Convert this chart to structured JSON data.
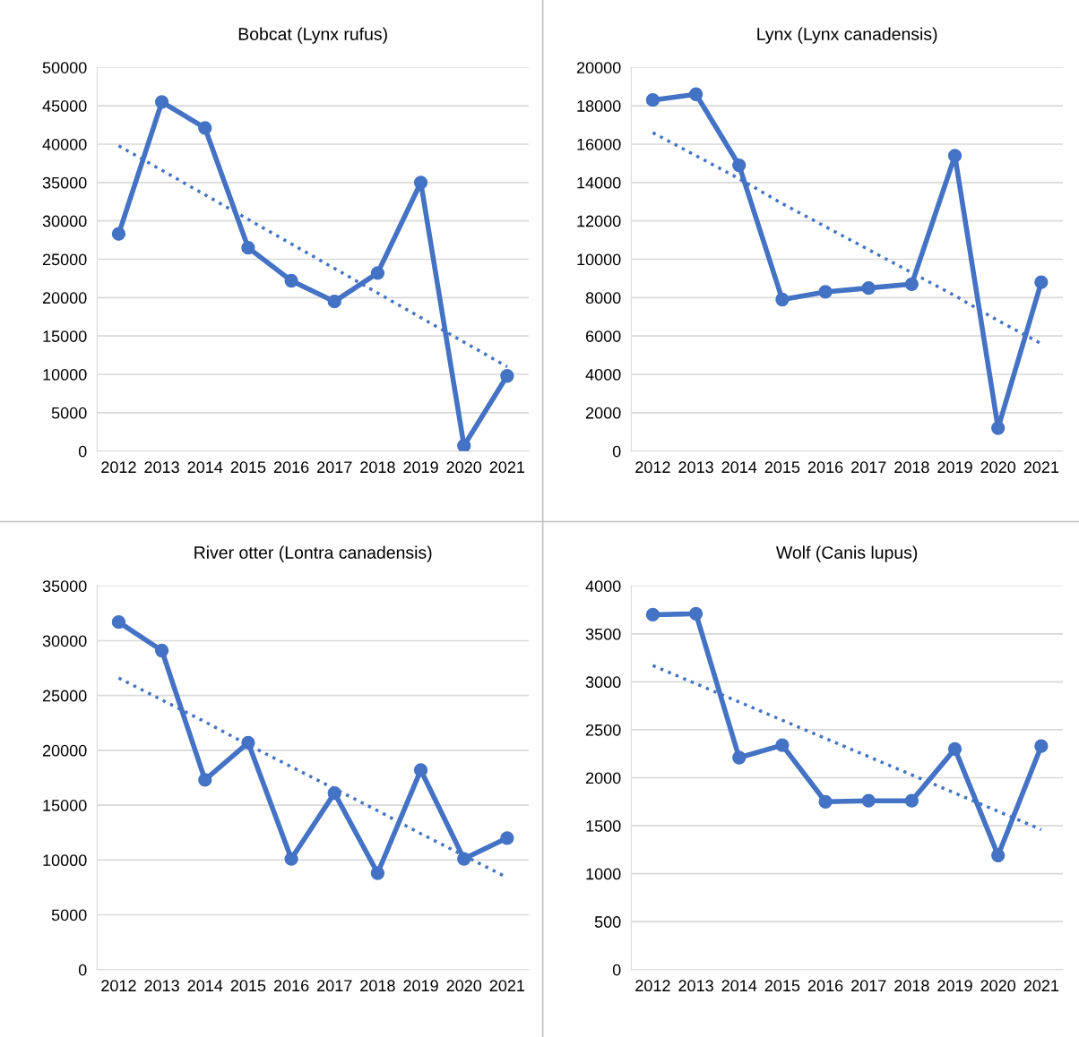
{
  "chart_data": [
    {
      "type": "line",
      "title": "Bobcat (Lynx rufus)",
      "x": [
        2012,
        2013,
        2014,
        2015,
        2016,
        2017,
        2018,
        2019,
        2020,
        2021
      ],
      "xlim": [
        2011.5,
        2021.5
      ],
      "xticks": [
        2012,
        2013,
        2014,
        2015,
        2016,
        2017,
        2018,
        2019,
        2020,
        2021
      ],
      "ylim": [
        0,
        50000
      ],
      "yticks": [
        0,
        5000,
        10000,
        15000,
        20000,
        25000,
        30000,
        35000,
        40000,
        45000,
        50000
      ],
      "grid": "y",
      "legend": false,
      "series": [
        {
          "color": "#4472c4",
          "marker": "circle",
          "line_style": "solid",
          "values": [
            28300,
            45500,
            42100,
            26500,
            22200,
            19500,
            23200,
            35000,
            700,
            9800
          ]
        },
        {
          "color": "#4472c4",
          "marker": "none",
          "line_style": "dotted",
          "values": [
            39800,
            36600,
            33400,
            30200,
            27000,
            23800,
            20600,
            17400,
            14200,
            11000
          ]
        }
      ]
    },
    {
      "type": "line",
      "title": "Lynx (Lynx canadensis)",
      "x": [
        2012,
        2013,
        2014,
        2015,
        2016,
        2017,
        2018,
        2019,
        2020,
        2021
      ],
      "xlim": [
        2011.5,
        2021.5
      ],
      "xticks": [
        2012,
        2013,
        2014,
        2015,
        2016,
        2017,
        2018,
        2019,
        2020,
        2021
      ],
      "ylim": [
        0,
        20000
      ],
      "yticks": [
        0,
        2000,
        4000,
        6000,
        8000,
        10000,
        12000,
        14000,
        16000,
        18000,
        20000
      ],
      "grid": "y",
      "legend": false,
      "series": [
        {
          "color": "#4472c4",
          "marker": "circle",
          "line_style": "solid",
          "values": [
            18300,
            18600,
            14900,
            7900,
            8300,
            8500,
            8700,
            15400,
            1200,
            8800
          ]
        },
        {
          "color": "#4472c4",
          "marker": "none",
          "line_style": "dotted",
          "values": [
            16600,
            15400,
            14200,
            12900,
            11700,
            10500,
            9300,
            8100,
            6800,
            5600
          ]
        }
      ]
    },
    {
      "type": "line",
      "title": "River otter (Lontra canadensis)",
      "x": [
        2012,
        2013,
        2014,
        2015,
        2016,
        2017,
        2018,
        2019,
        2020,
        2021
      ],
      "xlim": [
        2011.5,
        2021.5
      ],
      "xticks": [
        2012,
        2013,
        2014,
        2015,
        2016,
        2017,
        2018,
        2019,
        2020,
        2021
      ],
      "ylim": [
        0,
        35000
      ],
      "yticks": [
        0,
        5000,
        10000,
        15000,
        20000,
        25000,
        30000,
        35000
      ],
      "grid": "y",
      "legend": false,
      "series": [
        {
          "color": "#4472c4",
          "marker": "circle",
          "line_style": "solid",
          "values": [
            31700,
            29100,
            17300,
            20700,
            10100,
            16100,
            8800,
            18200,
            10100,
            12000
          ]
        },
        {
          "color": "#4472c4",
          "marker": "none",
          "line_style": "dotted",
          "values": [
            26600,
            24600,
            22600,
            20500,
            18500,
            16500,
            14500,
            12400,
            10400,
            8400
          ]
        }
      ]
    },
    {
      "type": "line",
      "title": "Wolf (Canis lupus)",
      "x": [
        2012,
        2013,
        2014,
        2015,
        2016,
        2017,
        2018,
        2019,
        2020,
        2021
      ],
      "xlim": [
        2011.5,
        2021.5
      ],
      "xticks": [
        2012,
        2013,
        2014,
        2015,
        2016,
        2017,
        2018,
        2019,
        2020,
        2021
      ],
      "ylim": [
        0,
        4000
      ],
      "yticks": [
        0,
        500,
        1000,
        1500,
        2000,
        2500,
        3000,
        3500,
        4000
      ],
      "grid": "y",
      "legend": false,
      "series": [
        {
          "color": "#4472c4",
          "marker": "circle",
          "line_style": "solid",
          "values": [
            3700,
            3710,
            2210,
            2340,
            1750,
            1760,
            1760,
            2300,
            1190,
            2330
          ]
        },
        {
          "color": "#4472c4",
          "marker": "none",
          "line_style": "dotted",
          "values": [
            3170,
            2980,
            2790,
            2600,
            2410,
            2220,
            2030,
            1840,
            1650,
            1460
          ]
        }
      ]
    }
  ]
}
